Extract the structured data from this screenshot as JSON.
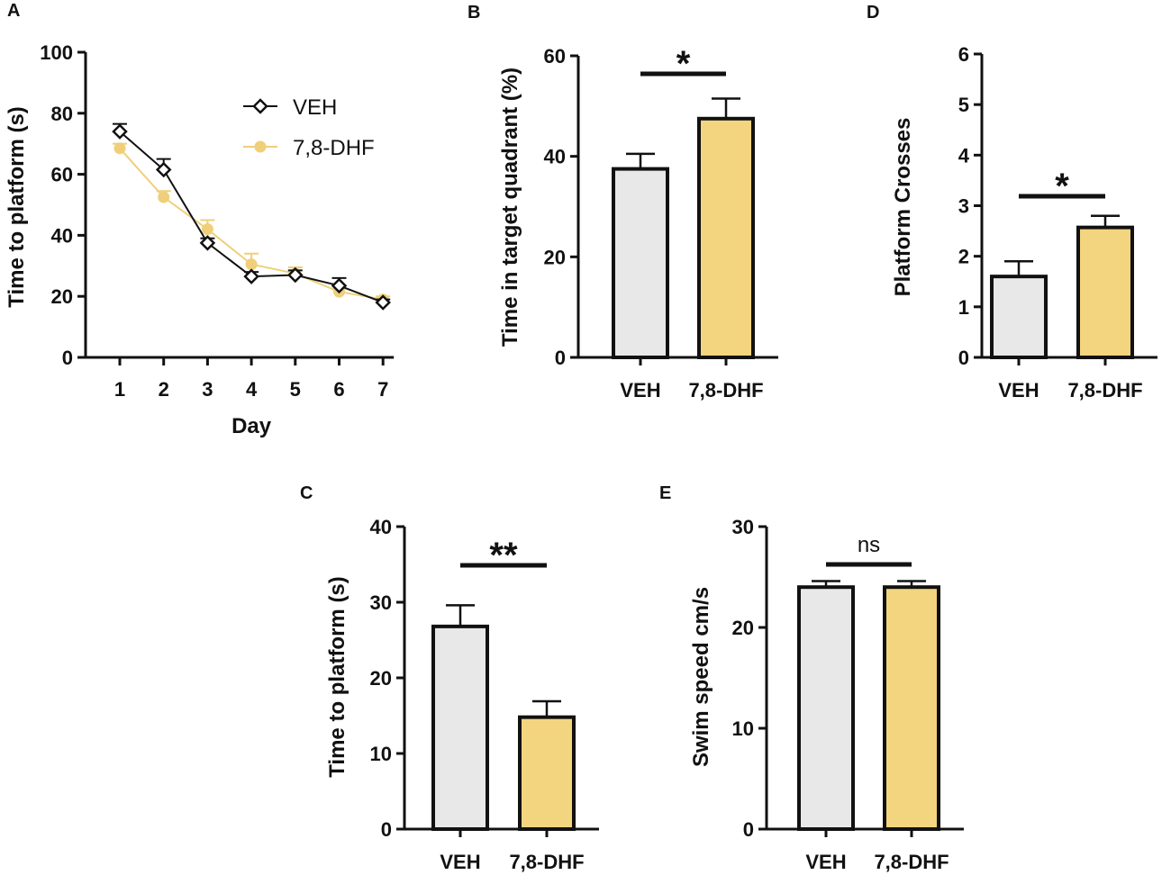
{
  "colors": {
    "veh": "#e8e8e8",
    "dhf": "#f3d47f",
    "dhf_line": "#efcf7a",
    "ink": "#111111"
  },
  "chart_data": [
    {
      "id": "A",
      "panel_label": "A",
      "type": "line",
      "xlabel": "Day",
      "ylabel": "Time to platform (s)",
      "x": [
        1,
        2,
        3,
        4,
        5,
        6,
        7
      ],
      "x_ticks": [
        "1",
        "2",
        "3",
        "4",
        "5",
        "6",
        "7"
      ],
      "ylim": [
        0,
        100
      ],
      "y_ticks": [
        "0",
        "20",
        "40",
        "60",
        "80",
        "100"
      ],
      "legend_position": "top-right",
      "series": [
        {
          "name": "VEH",
          "marker": "diamond-open",
          "color": "#111111",
          "values": [
            74,
            61.5,
            37.5,
            26.5,
            27,
            23.5,
            18
          ],
          "errors": [
            2.5,
            3.5,
            1.5,
            1.5,
            1.5,
            2.5,
            1
          ]
        },
        {
          "name": "7,8-DHF",
          "marker": "circle-filled",
          "color": "#efcf7a",
          "values": [
            68.5,
            52.5,
            42,
            30.5,
            27.5,
            21.5,
            19
          ],
          "errors": [
            1.5,
            2,
            3,
            3.5,
            2,
            1,
            1
          ]
        }
      ]
    },
    {
      "id": "B",
      "panel_label": "B",
      "type": "bar",
      "categories": [
        "VEH",
        "7,8-DHF"
      ],
      "values": [
        37.5,
        47.5
      ],
      "errors": [
        3,
        4
      ],
      "ylabel": "Time in target quadrant (%)",
      "ylim": [
        0,
        60
      ],
      "y_ticks": [
        "0",
        "20",
        "40",
        "60"
      ],
      "significance": "*"
    },
    {
      "id": "D",
      "panel_label": "D",
      "type": "bar",
      "categories": [
        "VEH",
        "7,8-DHF"
      ],
      "values": [
        1.6,
        2.57
      ],
      "errors": [
        0.3,
        0.23
      ],
      "ylabel": "Platform Crosses",
      "ylim": [
        0,
        6
      ],
      "y_ticks": [
        "0",
        "1",
        "2",
        "3",
        "4",
        "5",
        "6"
      ],
      "significance": "*"
    },
    {
      "id": "C",
      "panel_label": "C",
      "type": "bar",
      "categories": [
        "VEH",
        "7,8-DHF"
      ],
      "values": [
        26.8,
        14.8
      ],
      "errors": [
        2.8,
        2.1
      ],
      "ylabel": "Time to platform (s)",
      "ylim": [
        0,
        40
      ],
      "y_ticks": [
        "0",
        "10",
        "20",
        "30",
        "40"
      ],
      "significance": "**"
    },
    {
      "id": "E",
      "panel_label": "E",
      "type": "bar",
      "categories": [
        "VEH",
        "7,8-DHF"
      ],
      "values": [
        24,
        24
      ],
      "errors": [
        0.6,
        0.6
      ],
      "ylabel": "Swim speed cm/s",
      "ylim": [
        0,
        30
      ],
      "y_ticks": [
        "0",
        "10",
        "20",
        "30"
      ],
      "significance": "ns"
    }
  ]
}
